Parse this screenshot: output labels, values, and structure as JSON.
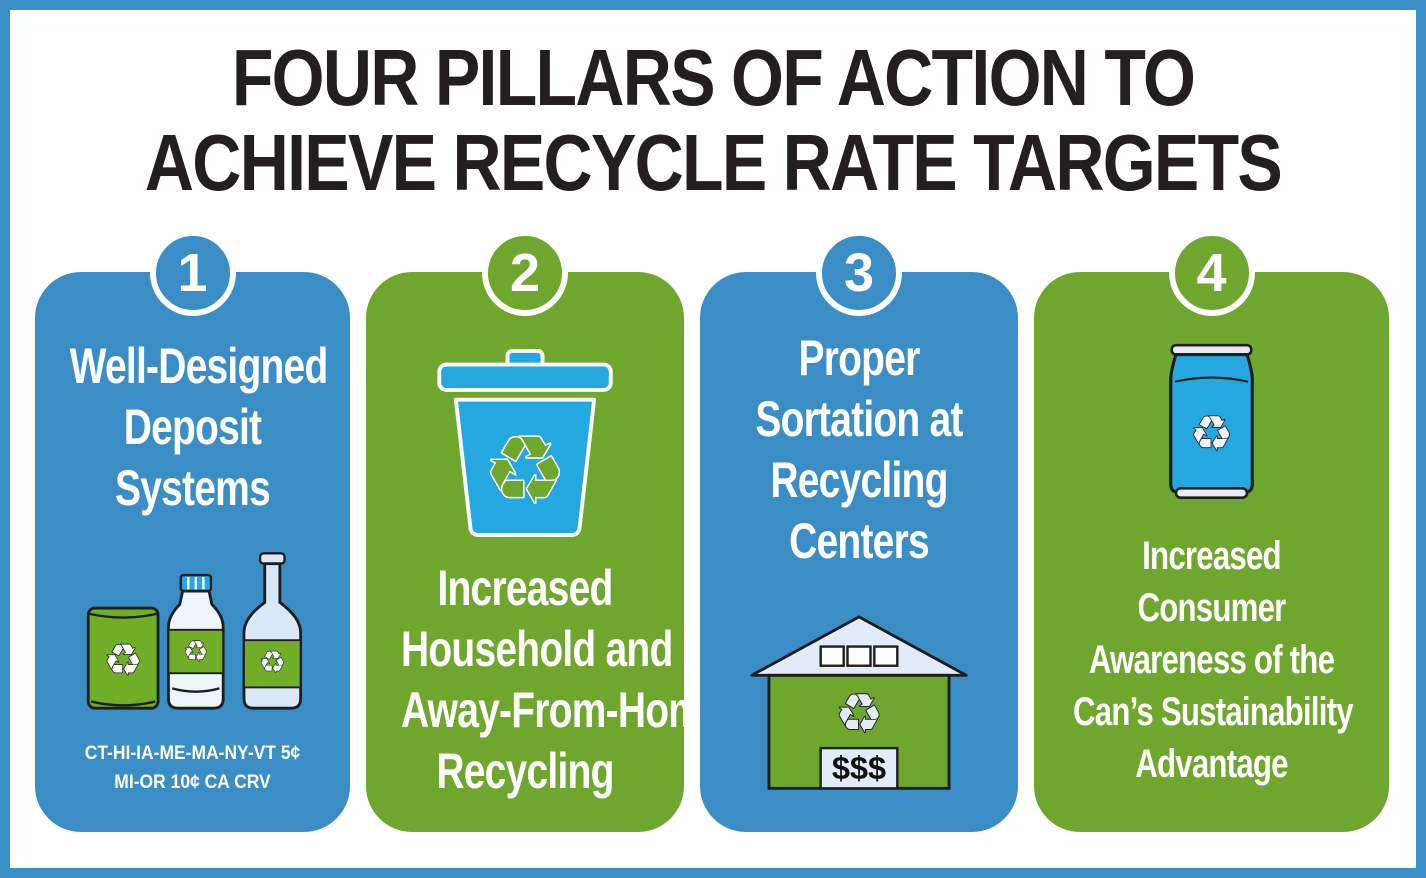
{
  "theme": {
    "blue": "#3B8DC6",
    "green": "#6FA62D",
    "bright_blue": "#25A7E0",
    "light_blue": "#E2ECF9",
    "can_green": "#6FAE26",
    "title_color": "#231F20"
  },
  "title": {
    "lines": [
      "FOUR PILLARS OF ACTION TO",
      "ACHIEVE RECYCLE RATE TARGETS"
    ]
  },
  "icons": {
    "recycle_glyph": "♻"
  },
  "pillars": [
    {
      "number": "1",
      "heading_lines": [
        "Well-Designed",
        "Deposit",
        "Systems"
      ],
      "caption_lines": [
        "CT-HI-IA-ME-MA-NY-VT 5¢",
        "MI-OR 10¢ CA CRV"
      ]
    },
    {
      "number": "2",
      "heading_lines": [
        "Increased",
        "Household and",
        "Away-From-Home",
        "Recycling"
      ]
    },
    {
      "number": "3",
      "heading_lines": [
        "Proper",
        "Sortation at",
        "Recycling",
        "Centers"
      ],
      "door_label": "$$$"
    },
    {
      "number": "4",
      "heading_lines": [
        "Increased",
        "Consumer",
        "Awareness of the",
        "Can’s Sustainability",
        "Advantage"
      ]
    }
  ]
}
